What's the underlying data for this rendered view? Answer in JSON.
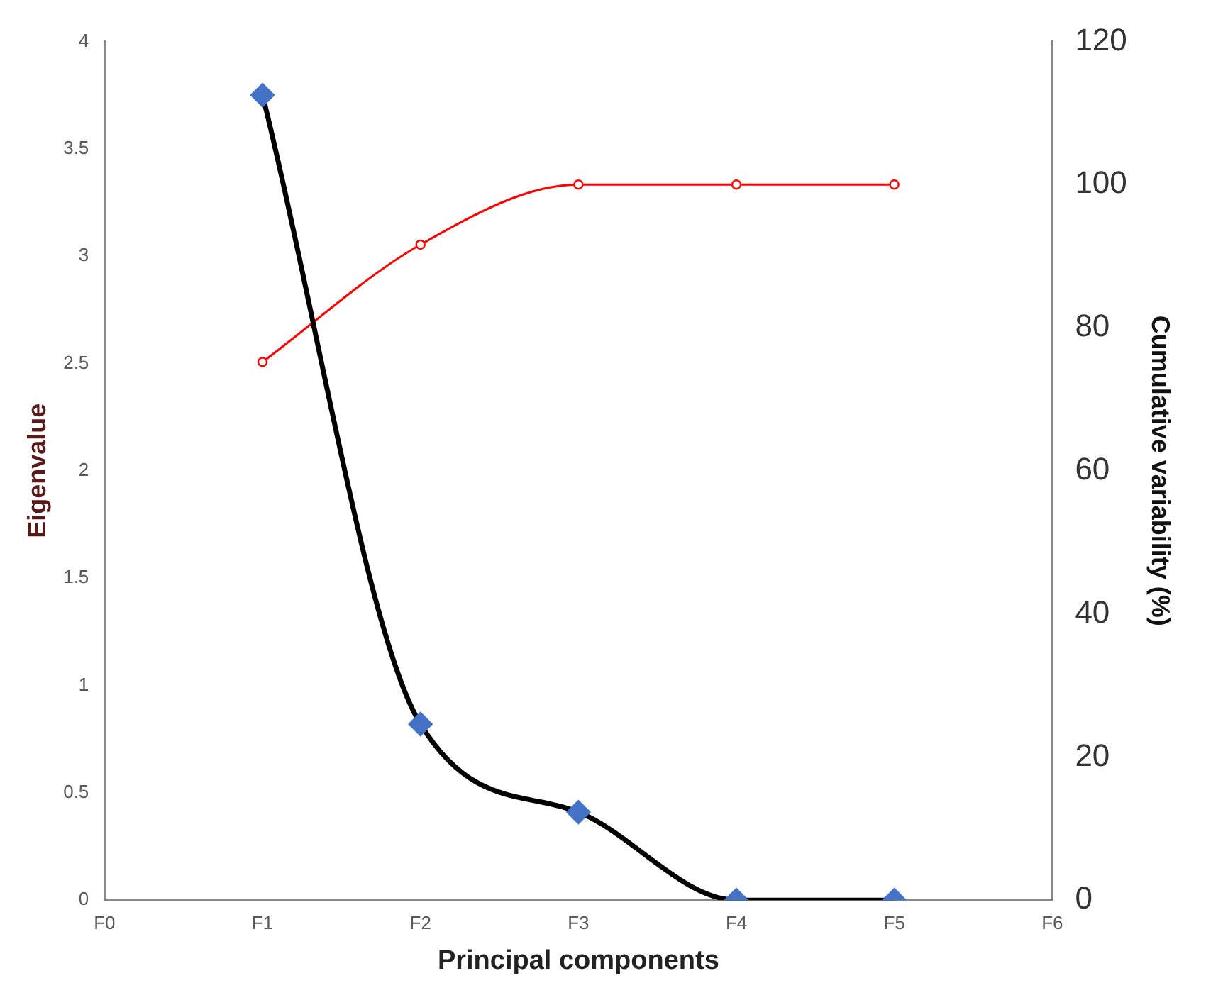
{
  "chart_data": {
    "type": "line",
    "xlabel": "Principal components",
    "ylabel": "Eigenvalue",
    "y2label": "Cumulative variability (%)",
    "categories": [
      "F0",
      "F1",
      "F2",
      "F3",
      "F4",
      "F5",
      "F6"
    ],
    "series": [
      {
        "color": "#000000",
        "colors": [
          null,
          "#4472c4",
          "#4472c4",
          "#4472c4",
          "#4472c4",
          "#4472c4",
          null
        ],
        "marker": "diamond",
        "values": [
          null,
          3.75,
          0.82,
          0.41,
          0,
          0,
          null
        ]
      },
      {
        "color": "#ff0000",
        "marker": "circle",
        "axis": "y2",
        "values": [
          null,
          75.2,
          91.6,
          100,
          100,
          100,
          null
        ]
      }
    ],
    "ylim": [
      0,
      4
    ],
    "yticks": [
      0,
      0.5,
      1,
      1.5,
      2,
      2.5,
      3,
      3.5,
      4
    ],
    "y2lim": [
      0,
      120
    ],
    "y2ticks": [
      0,
      20,
      40,
      60,
      80,
      100,
      120
    ],
    "grid": false,
    "legend": false
  }
}
